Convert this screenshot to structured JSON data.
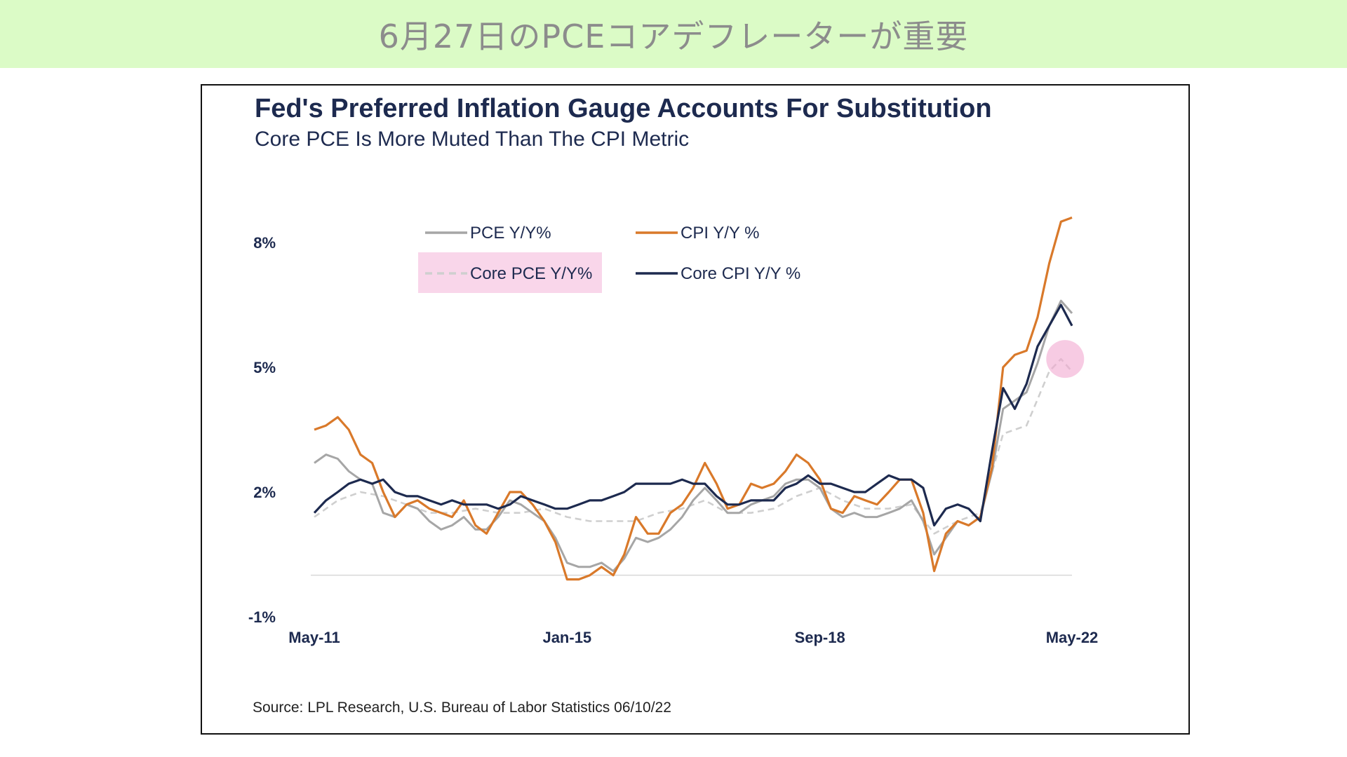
{
  "banner": {
    "title": "6月27日のPCEコアデフレーターが重要"
  },
  "chart": {
    "title": "Fed's Preferred Inflation Gauge Accounts For Substitution",
    "subtitle": "Core PCE Is More Muted Than The CPI Metric",
    "source": "Source: LPL Research, U.S. Bureau of Labor Statistics 06/10/22"
  },
  "colors": {
    "banner_bg": "#dbfbc6",
    "pce": "#a6a6a6",
    "cpi": "#d9792a",
    "core_pce": "#cfcfcf",
    "core_cpi": "#1d2a4f",
    "legend_highlight": "#f9d6ea",
    "marker": "#f2a8d0"
  },
  "chart_data": {
    "type": "line",
    "title": "Fed's Preferred Inflation Gauge Accounts For Substitution",
    "subtitle": "Core PCE Is More Muted Than The CPI Metric",
    "ylim": [
      -1,
      9.6
    ],
    "y_ticks": [
      "8%",
      "5%",
      "2%",
      "-1%"
    ],
    "y_tick_values": [
      8,
      5,
      2,
      -1
    ],
    "x_ticks": [
      "May-11",
      "Jan-15",
      "Sep-18",
      "May-22"
    ],
    "x_tick_values": [
      2011.33,
      2015.0,
      2018.67,
      2022.33
    ],
    "zero_line": 0,
    "legend": [
      {
        "key": "pce",
        "label": "PCE Y/Y%",
        "style": "solid",
        "highlight": false
      },
      {
        "key": "cpi",
        "label": "CPI Y/Y %",
        "style": "solid",
        "highlight": false
      },
      {
        "key": "core_pce",
        "label": "Core PCE Y/Y%",
        "style": "dashed",
        "highlight": true
      },
      {
        "key": "core_cpi",
        "label": "Core CPI Y/Y %",
        "style": "solid",
        "highlight": false
      }
    ],
    "series": [
      {
        "key": "cpi",
        "name": "CPI Y/Y %",
        "points": [
          [
            2011.33,
            3.5
          ],
          [
            2011.5,
            3.6
          ],
          [
            2011.67,
            3.8
          ],
          [
            2011.83,
            3.5
          ],
          [
            2012.0,
            2.9
          ],
          [
            2012.17,
            2.7
          ],
          [
            2012.33,
            2.0
          ],
          [
            2012.5,
            1.4
          ],
          [
            2012.67,
            1.7
          ],
          [
            2012.83,
            1.8
          ],
          [
            2013.0,
            1.6
          ],
          [
            2013.17,
            1.5
          ],
          [
            2013.33,
            1.4
          ],
          [
            2013.5,
            1.8
          ],
          [
            2013.67,
            1.2
          ],
          [
            2013.83,
            1.0
          ],
          [
            2014.0,
            1.5
          ],
          [
            2014.17,
            2.0
          ],
          [
            2014.33,
            2.0
          ],
          [
            2014.5,
            1.7
          ],
          [
            2014.67,
            1.3
          ],
          [
            2014.83,
            0.8
          ],
          [
            2015.0,
            -0.1
          ],
          [
            2015.17,
            -0.1
          ],
          [
            2015.33,
            0.0
          ],
          [
            2015.5,
            0.2
          ],
          [
            2015.67,
            0.0
          ],
          [
            2015.83,
            0.5
          ],
          [
            2016.0,
            1.4
          ],
          [
            2016.17,
            1.0
          ],
          [
            2016.33,
            1.0
          ],
          [
            2016.5,
            1.5
          ],
          [
            2016.67,
            1.7
          ],
          [
            2016.83,
            2.1
          ],
          [
            2017.0,
            2.7
          ],
          [
            2017.17,
            2.2
          ],
          [
            2017.33,
            1.6
          ],
          [
            2017.5,
            1.7
          ],
          [
            2017.67,
            2.2
          ],
          [
            2017.83,
            2.1
          ],
          [
            2018.0,
            2.2
          ],
          [
            2018.17,
            2.5
          ],
          [
            2018.33,
            2.9
          ],
          [
            2018.5,
            2.7
          ],
          [
            2018.67,
            2.3
          ],
          [
            2018.83,
            1.6
          ],
          [
            2019.0,
            1.5
          ],
          [
            2019.17,
            1.9
          ],
          [
            2019.33,
            1.8
          ],
          [
            2019.5,
            1.7
          ],
          [
            2019.67,
            2.0
          ],
          [
            2019.83,
            2.3
          ],
          [
            2020.0,
            2.3
          ],
          [
            2020.17,
            1.5
          ],
          [
            2020.33,
            0.1
          ],
          [
            2020.5,
            1.0
          ],
          [
            2020.67,
            1.3
          ],
          [
            2020.83,
            1.2
          ],
          [
            2021.0,
            1.4
          ],
          [
            2021.17,
            2.6
          ],
          [
            2021.33,
            5.0
          ],
          [
            2021.5,
            5.3
          ],
          [
            2021.67,
            5.4
          ],
          [
            2021.83,
            6.2
          ],
          [
            2022.0,
            7.5
          ],
          [
            2022.17,
            8.5
          ],
          [
            2022.33,
            8.6
          ]
        ]
      },
      {
        "key": "pce",
        "name": "PCE Y/Y%",
        "points": [
          [
            2011.33,
            2.7
          ],
          [
            2011.5,
            2.9
          ],
          [
            2011.67,
            2.8
          ],
          [
            2011.83,
            2.5
          ],
          [
            2012.0,
            2.3
          ],
          [
            2012.17,
            2.2
          ],
          [
            2012.33,
            1.5
          ],
          [
            2012.5,
            1.4
          ],
          [
            2012.67,
            1.7
          ],
          [
            2012.83,
            1.6
          ],
          [
            2013.0,
            1.3
          ],
          [
            2013.17,
            1.1
          ],
          [
            2013.33,
            1.2
          ],
          [
            2013.5,
            1.4
          ],
          [
            2013.67,
            1.1
          ],
          [
            2013.83,
            1.1
          ],
          [
            2014.0,
            1.4
          ],
          [
            2014.17,
            1.8
          ],
          [
            2014.33,
            1.7
          ],
          [
            2014.5,
            1.5
          ],
          [
            2014.67,
            1.3
          ],
          [
            2014.83,
            0.9
          ],
          [
            2015.0,
            0.3
          ],
          [
            2015.17,
            0.2
          ],
          [
            2015.33,
            0.2
          ],
          [
            2015.5,
            0.3
          ],
          [
            2015.67,
            0.1
          ],
          [
            2015.83,
            0.4
          ],
          [
            2016.0,
            0.9
          ],
          [
            2016.17,
            0.8
          ],
          [
            2016.33,
            0.9
          ],
          [
            2016.5,
            1.1
          ],
          [
            2016.67,
            1.4
          ],
          [
            2016.83,
            1.8
          ],
          [
            2017.0,
            2.1
          ],
          [
            2017.17,
            1.8
          ],
          [
            2017.33,
            1.5
          ],
          [
            2017.5,
            1.5
          ],
          [
            2017.67,
            1.7
          ],
          [
            2017.83,
            1.8
          ],
          [
            2018.0,
            1.9
          ],
          [
            2018.17,
            2.2
          ],
          [
            2018.33,
            2.3
          ],
          [
            2018.5,
            2.3
          ],
          [
            2018.67,
            2.1
          ],
          [
            2018.83,
            1.6
          ],
          [
            2019.0,
            1.4
          ],
          [
            2019.17,
            1.5
          ],
          [
            2019.33,
            1.4
          ],
          [
            2019.5,
            1.4
          ],
          [
            2019.67,
            1.5
          ],
          [
            2019.83,
            1.6
          ],
          [
            2020.0,
            1.8
          ],
          [
            2020.17,
            1.3
          ],
          [
            2020.33,
            0.5
          ],
          [
            2020.5,
            0.9
          ],
          [
            2020.67,
            1.3
          ],
          [
            2020.83,
            1.2
          ],
          [
            2021.0,
            1.4
          ],
          [
            2021.17,
            2.5
          ],
          [
            2021.33,
            4.0
          ],
          [
            2021.5,
            4.2
          ],
          [
            2021.67,
            4.4
          ],
          [
            2021.83,
            5.1
          ],
          [
            2022.0,
            6.0
          ],
          [
            2022.17,
            6.6
          ],
          [
            2022.33,
            6.3
          ]
        ]
      },
      {
        "key": "core_pce",
        "name": "Core PCE Y/Y%",
        "points": [
          [
            2011.33,
            1.4
          ],
          [
            2011.67,
            1.8
          ],
          [
            2012.0,
            2.0
          ],
          [
            2012.33,
            1.9
          ],
          [
            2012.67,
            1.7
          ],
          [
            2013.0,
            1.5
          ],
          [
            2013.33,
            1.5
          ],
          [
            2013.67,
            1.6
          ],
          [
            2014.0,
            1.5
          ],
          [
            2014.33,
            1.5
          ],
          [
            2014.67,
            1.6
          ],
          [
            2015.0,
            1.4
          ],
          [
            2015.33,
            1.3
          ],
          [
            2015.67,
            1.3
          ],
          [
            2016.0,
            1.3
          ],
          [
            2016.33,
            1.5
          ],
          [
            2016.67,
            1.6
          ],
          [
            2017.0,
            1.8
          ],
          [
            2017.33,
            1.5
          ],
          [
            2017.67,
            1.5
          ],
          [
            2018.0,
            1.6
          ],
          [
            2018.33,
            1.9
          ],
          [
            2018.67,
            2.1
          ],
          [
            2019.0,
            1.8
          ],
          [
            2019.33,
            1.6
          ],
          [
            2019.67,
            1.6
          ],
          [
            2020.0,
            1.7
          ],
          [
            2020.33,
            1.0
          ],
          [
            2020.67,
            1.3
          ],
          [
            2021.0,
            1.5
          ],
          [
            2021.33,
            3.4
          ],
          [
            2021.67,
            3.6
          ],
          [
            2022.0,
            4.9
          ],
          [
            2022.17,
            5.2
          ],
          [
            2022.33,
            4.9
          ]
        ]
      },
      {
        "key": "core_cpi",
        "name": "Core CPI Y/Y %",
        "points": [
          [
            2011.33,
            1.5
          ],
          [
            2011.5,
            1.8
          ],
          [
            2011.67,
            2.0
          ],
          [
            2011.83,
            2.2
          ],
          [
            2012.0,
            2.3
          ],
          [
            2012.17,
            2.2
          ],
          [
            2012.33,
            2.3
          ],
          [
            2012.5,
            2.0
          ],
          [
            2012.67,
            1.9
          ],
          [
            2012.83,
            1.9
          ],
          [
            2013.0,
            1.8
          ],
          [
            2013.17,
            1.7
          ],
          [
            2013.33,
            1.8
          ],
          [
            2013.5,
            1.7
          ],
          [
            2013.67,
            1.7
          ],
          [
            2013.83,
            1.7
          ],
          [
            2014.0,
            1.6
          ],
          [
            2014.17,
            1.7
          ],
          [
            2014.33,
            1.9
          ],
          [
            2014.5,
            1.8
          ],
          [
            2014.67,
            1.7
          ],
          [
            2014.83,
            1.6
          ],
          [
            2015.0,
            1.6
          ],
          [
            2015.17,
            1.7
          ],
          [
            2015.33,
            1.8
          ],
          [
            2015.5,
            1.8
          ],
          [
            2015.67,
            1.9
          ],
          [
            2015.83,
            2.0
          ],
          [
            2016.0,
            2.2
          ],
          [
            2016.17,
            2.2
          ],
          [
            2016.33,
            2.2
          ],
          [
            2016.5,
            2.2
          ],
          [
            2016.67,
            2.3
          ],
          [
            2016.83,
            2.2
          ],
          [
            2017.0,
            2.2
          ],
          [
            2017.17,
            1.9
          ],
          [
            2017.33,
            1.7
          ],
          [
            2017.5,
            1.7
          ],
          [
            2017.67,
            1.8
          ],
          [
            2017.83,
            1.8
          ],
          [
            2018.0,
            1.8
          ],
          [
            2018.17,
            2.1
          ],
          [
            2018.33,
            2.2
          ],
          [
            2018.5,
            2.4
          ],
          [
            2018.67,
            2.2
          ],
          [
            2018.83,
            2.2
          ],
          [
            2019.0,
            2.1
          ],
          [
            2019.17,
            2.0
          ],
          [
            2019.33,
            2.0
          ],
          [
            2019.5,
            2.2
          ],
          [
            2019.67,
            2.4
          ],
          [
            2019.83,
            2.3
          ],
          [
            2020.0,
            2.3
          ],
          [
            2020.17,
            2.1
          ],
          [
            2020.33,
            1.2
          ],
          [
            2020.5,
            1.6
          ],
          [
            2020.67,
            1.7
          ],
          [
            2020.83,
            1.6
          ],
          [
            2021.0,
            1.3
          ],
          [
            2021.17,
            3.0
          ],
          [
            2021.33,
            4.5
          ],
          [
            2021.5,
            4.0
          ],
          [
            2021.67,
            4.6
          ],
          [
            2021.83,
            5.5
          ],
          [
            2022.0,
            6.0
          ],
          [
            2022.17,
            6.5
          ],
          [
            2022.33,
            6.0
          ]
        ]
      }
    ]
  }
}
